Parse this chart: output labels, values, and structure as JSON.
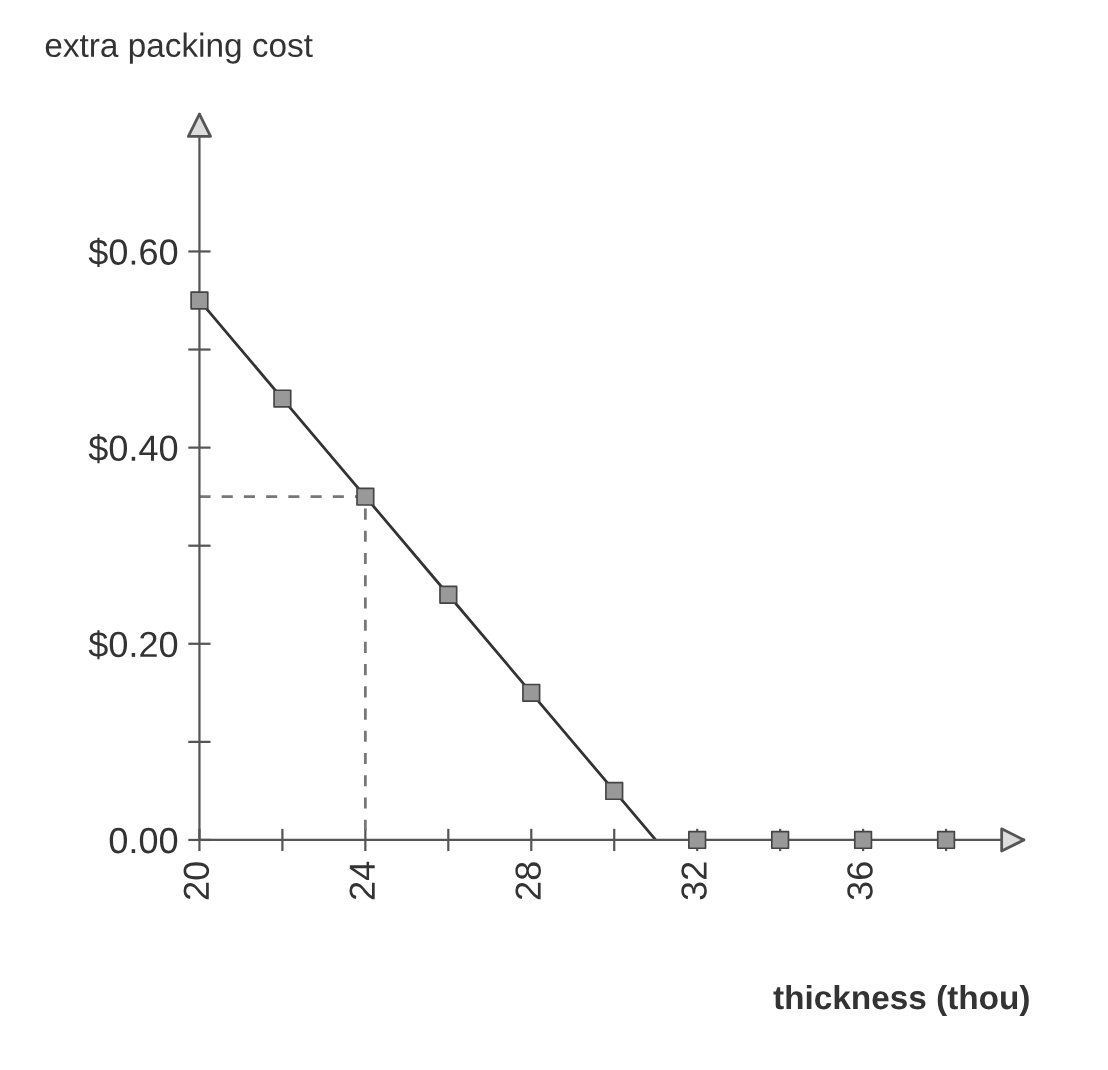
{
  "chart_data": {
    "type": "line",
    "ylabel": "extra packing cost",
    "xlabel": "thickness (thou)",
    "xlim": [
      20,
      39.5
    ],
    "ylim": [
      0,
      0.72
    ],
    "xticks": [
      20,
      {
        "value": 22,
        "label": null
      },
      24,
      {
        "value": 26,
        "label": null
      },
      28,
      {
        "value": 30,
        "label": null
      },
      32,
      {
        "value": 34,
        "label": null
      },
      36,
      {
        "value": 38,
        "label": null
      }
    ],
    "yticks": [
      {
        "value": 0,
        "label": "0.00"
      },
      {
        "value": 0.1,
        "label": null
      },
      {
        "value": 0.2,
        "label": "$0.20"
      },
      {
        "value": 0.3,
        "label": null
      },
      {
        "value": 0.4,
        "label": "$0.40"
      },
      {
        "value": 0.5,
        "label": null
      },
      {
        "value": 0.6,
        "label": "$0.60"
      }
    ],
    "grid": false,
    "legend": false,
    "series": [
      {
        "color": "#333333",
        "marker": "none",
        "line_style": "solid",
        "x": [
          20,
          22,
          24,
          26,
          28,
          30,
          31
        ],
        "values": [
          0.55,
          0.45,
          0.35,
          0.25,
          0.15,
          0.05,
          0
        ]
      },
      {
        "color": "#777777",
        "marker": "none",
        "line_style": "dashed",
        "x": [
          20,
          24,
          24
        ],
        "values": [
          0.35,
          0.35,
          0
        ]
      },
      {
        "type": "scatter",
        "color": "#999999",
        "marker": "square",
        "x": [
          20,
          22,
          24,
          26,
          28,
          30,
          32,
          34,
          36,
          38
        ],
        "values": [
          0.55,
          0.45,
          0.35,
          0.25,
          0.15,
          0.05,
          0,
          0,
          0,
          0
        ]
      }
    ]
  }
}
